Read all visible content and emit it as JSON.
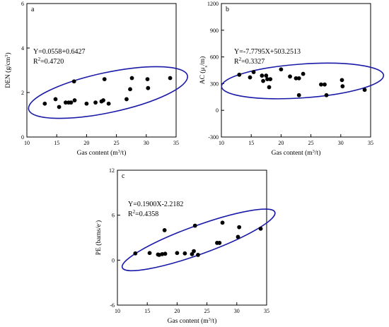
{
  "chart_data": [
    {
      "type": "scatter",
      "panel_label": "a",
      "xlabel_main": "Gas content (m",
      "xlabel_sup": "3",
      "xlabel_end": "/t)",
      "ylabel_main": "DEN (g/cm",
      "ylabel_sup": "3",
      "ylabel_end": ")",
      "xlim": [
        10,
        35
      ],
      "ylim": [
        0,
        6
      ],
      "xticks": [
        10,
        15,
        20,
        25,
        30,
        35
      ],
      "yticks": [
        0,
        2,
        4,
        6
      ],
      "equation": "Y=0.0558+0.6427",
      "r2_label": "R",
      "r2_sup": "2",
      "r2_value": "=0.4720",
      "ellipse": {
        "cx": 23.6,
        "cy": 2.0,
        "rx": 13.6,
        "ry": 0.9,
        "angle_deg": -12,
        "color": "#1a1aa8"
      },
      "points": [
        [
          13.0,
          1.5
        ],
        [
          14.8,
          1.7
        ],
        [
          15.4,
          1.35
        ],
        [
          16.5,
          1.55
        ],
        [
          17.0,
          1.55
        ],
        [
          17.4,
          1.55
        ],
        [
          17.9,
          2.5
        ],
        [
          18.0,
          1.65
        ],
        [
          20.0,
          1.5
        ],
        [
          21.5,
          1.55
        ],
        [
          22.5,
          1.6
        ],
        [
          22.8,
          1.65
        ],
        [
          23.0,
          2.6
        ],
        [
          23.7,
          1.5
        ],
        [
          26.7,
          1.7
        ],
        [
          27.3,
          2.15
        ],
        [
          27.6,
          2.65
        ],
        [
          30.2,
          2.6
        ],
        [
          30.3,
          2.2
        ],
        [
          34.0,
          2.65
        ]
      ]
    },
    {
      "type": "scatter",
      "panel_label": "b",
      "xlabel_main": "Gas content (m",
      "xlabel_sup": "3",
      "xlabel_end": "/t)",
      "ylabel_main": "AC (μ",
      "ylabel_sub": "s",
      "ylabel_end": "/m)",
      "xlim": [
        10,
        35
      ],
      "ylim": [
        -300,
        1200
      ],
      "xticks": [
        10,
        15,
        20,
        25,
        30,
        35
      ],
      "yticks": [
        -300,
        0,
        300,
        600,
        900,
        1200
      ],
      "equation": "Y=-7.7795X+503.2513",
      "r2_label": "R",
      "r2_sup": "2",
      "r2_value": "=0.3327",
      "ellipse": {
        "cx": 23.6,
        "cy": 330,
        "rx": 13.6,
        "ry": 190,
        "angle_deg": -4,
        "color": "#1a1aa8"
      },
      "points": [
        [
          13.0,
          400
        ],
        [
          14.8,
          370
        ],
        [
          15.4,
          430
        ],
        [
          16.8,
          390
        ],
        [
          17.0,
          330
        ],
        [
          17.5,
          390
        ],
        [
          17.7,
          350
        ],
        [
          18.0,
          260
        ],
        [
          18.2,
          350
        ],
        [
          20.0,
          460
        ],
        [
          21.5,
          380
        ],
        [
          22.5,
          360
        ],
        [
          23.0,
          360
        ],
        [
          23.0,
          170
        ],
        [
          23.7,
          410
        ],
        [
          26.7,
          290
        ],
        [
          27.3,
          290
        ],
        [
          27.6,
          170
        ],
        [
          30.2,
          340
        ],
        [
          30.3,
          270
        ],
        [
          34.0,
          230
        ]
      ]
    },
    {
      "type": "scatter",
      "panel_label": "c",
      "xlabel_main": "Gas content (m",
      "xlabel_sup": "3",
      "xlabel_end": "/t)",
      "ylabel_main": "PE (barns/e",
      "ylabel_sup": "-",
      "ylabel_end": ")",
      "xlim": [
        10,
        35
      ],
      "ylim": [
        -6,
        12
      ],
      "xticks": [
        10,
        15,
        20,
        25,
        30,
        35
      ],
      "yticks": [
        -6,
        0,
        6,
        12
      ],
      "equation": "Y=0.1900X-2.2182",
      "r2_label": "R",
      "r2_sup": "2",
      "r2_value": "=0.4358",
      "ellipse": {
        "cx": 23.6,
        "cy": 2.7,
        "rx": 13.6,
        "ry": 1.9,
        "angle_deg": -20,
        "color": "#1a1aa8"
      },
      "points": [
        [
          13.0,
          0.9
        ],
        [
          15.4,
          0.95
        ],
        [
          16.8,
          0.75
        ],
        [
          17.0,
          0.7
        ],
        [
          17.5,
          0.8
        ],
        [
          17.9,
          4.0
        ],
        [
          18.0,
          0.85
        ],
        [
          20.0,
          0.95
        ],
        [
          21.3,
          0.9
        ],
        [
          22.5,
          0.8
        ],
        [
          22.8,
          1.2
        ],
        [
          23.0,
          4.6
        ],
        [
          23.5,
          0.7
        ],
        [
          26.7,
          2.3
        ],
        [
          27.1,
          2.3
        ],
        [
          27.6,
          5.0
        ],
        [
          30.2,
          3.1
        ],
        [
          30.4,
          4.4
        ],
        [
          34.0,
          4.2
        ]
      ]
    }
  ]
}
